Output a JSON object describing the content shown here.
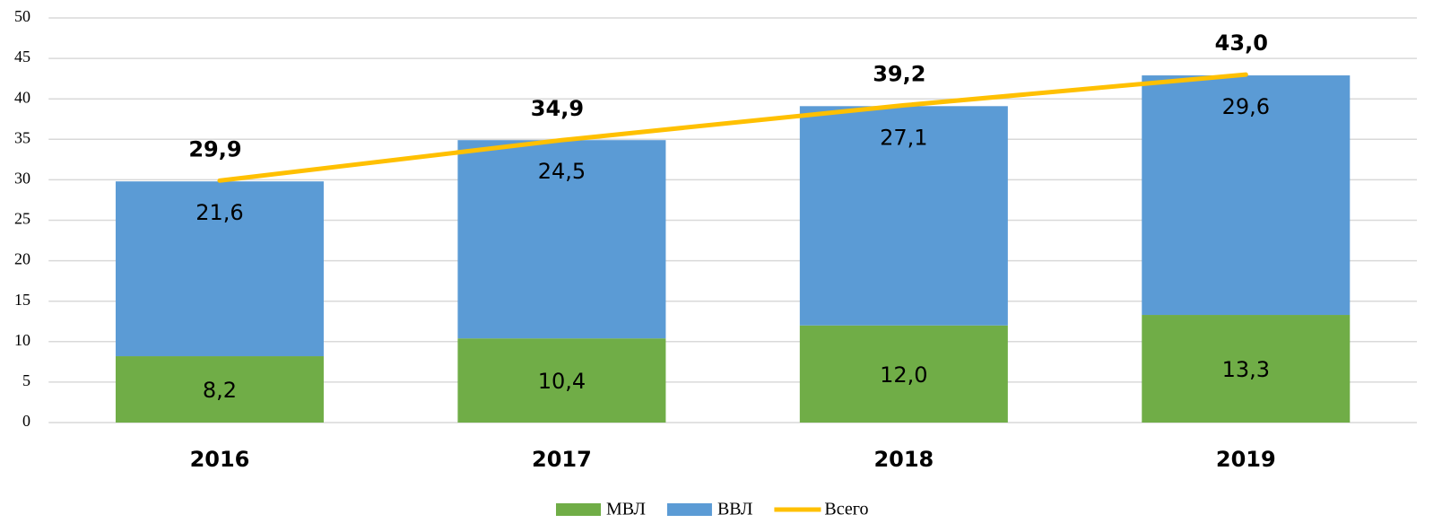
{
  "chart_data": {
    "type": "bar",
    "stacked": true,
    "categories": [
      "2016",
      "2017",
      "2018",
      "2019"
    ],
    "series": [
      {
        "name": "МВЛ",
        "color": "#70ad47",
        "values": [
          8.2,
          10.4,
          12.0,
          13.3
        ],
        "value_labels": [
          "8,2",
          "10,4",
          "12,0",
          "13,3"
        ]
      },
      {
        "name": "ВВЛ",
        "color": "#5b9bd5",
        "values": [
          21.6,
          24.5,
          27.1,
          29.6
        ],
        "value_labels": [
          "21,6",
          "24,5",
          "27,1",
          "29,6"
        ]
      },
      {
        "name": "Всего",
        "type": "line",
        "color": "#ffc000",
        "values": [
          29.9,
          34.9,
          39.2,
          43.0
        ],
        "value_labels": [
          "29,9",
          "34,9",
          "39,2",
          "43,0"
        ]
      }
    ],
    "ylim": [
      0,
      50
    ],
    "yticks": [
      0,
      5,
      10,
      15,
      20,
      25,
      30,
      35,
      40,
      45,
      50
    ],
    "grid": true,
    "legend": "bottom"
  }
}
